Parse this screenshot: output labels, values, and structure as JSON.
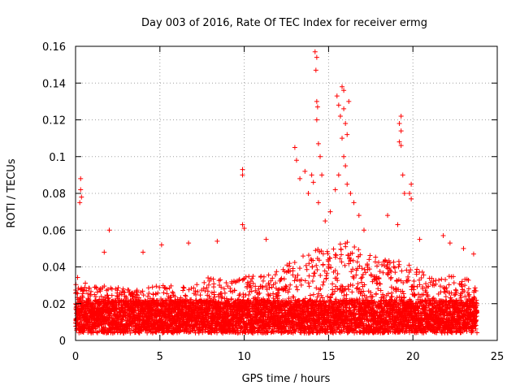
{
  "chart_data": {
    "type": "scatter",
    "title": "Day 003 of 2016, Rate Of TEC Index for receiver ermg",
    "xlabel": "GPS time / hours",
    "ylabel": "ROTI / TECUs",
    "xlim": [
      0,
      25
    ],
    "ylim": [
      0,
      0.16
    ],
    "grid": true,
    "marker": "+",
    "marker_color": "#ff0000",
    "xticks": [
      0,
      5,
      10,
      15,
      20,
      25
    ],
    "xtick_labels": [
      "0",
      "5",
      "10",
      "15",
      "20",
      "25"
    ],
    "yticks": [
      0,
      0.02,
      0.04,
      0.06,
      0.08,
      0.1,
      0.12,
      0.14,
      0.16
    ],
    "ytick_labels": [
      "0",
      "0.02",
      "0.04",
      "0.06",
      "0.08",
      "0.1",
      "0.12",
      "0.14",
      "0.16"
    ],
    "x_range_observed": [
      0,
      23.8
    ],
    "baseline_envelope": {
      "x": [
        0,
        1,
        2,
        3,
        4,
        5,
        6,
        7,
        8,
        9,
        10,
        11,
        12,
        13,
        14,
        15,
        16,
        17,
        18,
        19,
        20,
        21,
        22,
        23,
        23.8
      ],
      "typical_max": [
        0.035,
        0.03,
        0.03,
        0.028,
        0.028,
        0.03,
        0.03,
        0.03,
        0.035,
        0.032,
        0.035,
        0.035,
        0.038,
        0.045,
        0.05,
        0.05,
        0.055,
        0.048,
        0.045,
        0.045,
        0.04,
        0.035,
        0.035,
        0.035,
        0.03
      ]
    },
    "peaks": [
      {
        "x": 0.3,
        "y": 0.088
      },
      {
        "x": 0.3,
        "y": 0.082
      },
      {
        "x": 0.35,
        "y": 0.078
      },
      {
        "x": 0.25,
        "y": 0.075
      },
      {
        "x": 2.0,
        "y": 0.06
      },
      {
        "x": 1.7,
        "y": 0.048
      },
      {
        "x": 4.0,
        "y": 0.048
      },
      {
        "x": 5.1,
        "y": 0.052
      },
      {
        "x": 6.7,
        "y": 0.053
      },
      {
        "x": 8.4,
        "y": 0.054
      },
      {
        "x": 9.9,
        "y": 0.093
      },
      {
        "x": 9.9,
        "y": 0.09
      },
      {
        "x": 9.9,
        "y": 0.063
      },
      {
        "x": 10.0,
        "y": 0.061
      },
      {
        "x": 11.3,
        "y": 0.055
      },
      {
        "x": 13.0,
        "y": 0.105
      },
      {
        "x": 13.1,
        "y": 0.098
      },
      {
        "x": 13.3,
        "y": 0.088
      },
      {
        "x": 13.6,
        "y": 0.092
      },
      {
        "x": 13.8,
        "y": 0.08
      },
      {
        "x": 14.0,
        "y": 0.09
      },
      {
        "x": 14.1,
        "y": 0.086
      },
      {
        "x": 14.2,
        "y": 0.157
      },
      {
        "x": 14.3,
        "y": 0.154
      },
      {
        "x": 14.25,
        "y": 0.147
      },
      {
        "x": 14.3,
        "y": 0.13
      },
      {
        "x": 14.35,
        "y": 0.127
      },
      {
        "x": 14.3,
        "y": 0.12
      },
      {
        "x": 14.4,
        "y": 0.107
      },
      {
        "x": 14.5,
        "y": 0.1
      },
      {
        "x": 14.6,
        "y": 0.09
      },
      {
        "x": 14.4,
        "y": 0.075
      },
      {
        "x": 14.8,
        "y": 0.065
      },
      {
        "x": 15.1,
        "y": 0.07
      },
      {
        "x": 15.5,
        "y": 0.133
      },
      {
        "x": 15.6,
        "y": 0.128
      },
      {
        "x": 15.7,
        "y": 0.122
      },
      {
        "x": 15.8,
        "y": 0.138
      },
      {
        "x": 15.9,
        "y": 0.136
      },
      {
        "x": 15.9,
        "y": 0.126
      },
      {
        "x": 16.0,
        "y": 0.118
      },
      {
        "x": 16.1,
        "y": 0.112
      },
      {
        "x": 16.2,
        "y": 0.13
      },
      {
        "x": 15.8,
        "y": 0.11
      },
      {
        "x": 15.9,
        "y": 0.1
      },
      {
        "x": 16.0,
        "y": 0.095
      },
      {
        "x": 16.1,
        "y": 0.085
      },
      {
        "x": 16.3,
        "y": 0.08
      },
      {
        "x": 15.6,
        "y": 0.09
      },
      {
        "x": 15.4,
        "y": 0.082
      },
      {
        "x": 16.5,
        "y": 0.075
      },
      {
        "x": 16.8,
        "y": 0.068
      },
      {
        "x": 17.1,
        "y": 0.06
      },
      {
        "x": 18.5,
        "y": 0.068
      },
      {
        "x": 19.1,
        "y": 0.063
      },
      {
        "x": 19.2,
        "y": 0.118
      },
      {
        "x": 19.3,
        "y": 0.122
      },
      {
        "x": 19.3,
        "y": 0.114
      },
      {
        "x": 19.2,
        "y": 0.108
      },
      {
        "x": 19.3,
        "y": 0.106
      },
      {
        "x": 19.4,
        "y": 0.09
      },
      {
        "x": 19.5,
        "y": 0.08
      },
      {
        "x": 19.9,
        "y": 0.085
      },
      {
        "x": 19.8,
        "y": 0.08
      },
      {
        "x": 19.9,
        "y": 0.077
      },
      {
        "x": 20.4,
        "y": 0.055
      },
      {
        "x": 21.8,
        "y": 0.057
      },
      {
        "x": 22.2,
        "y": 0.053
      },
      {
        "x": 23.0,
        "y": 0.05
      },
      {
        "x": 23.6,
        "y": 0.047
      }
    ]
  }
}
